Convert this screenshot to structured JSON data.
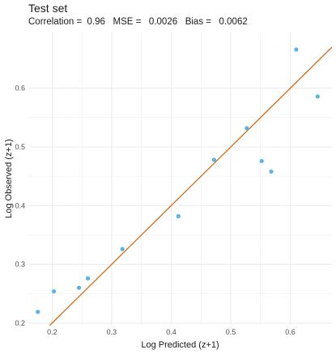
{
  "chart_data": {
    "type": "scatter",
    "title": "Test set",
    "subtitle": "Correlation =  0.96   MSE =   0.0026   Bias =   0.0062",
    "xlabel": "Log Predicted (z+1)",
    "ylabel": "Log Observed (z+1)",
    "xlim": [
      0.16,
      0.67
    ],
    "ylim": [
      0.197,
      0.695
    ],
    "xticks": [
      "0.2",
      "0.3",
      "0.4",
      "0.5",
      "0.6"
    ],
    "yticks": [
      "0.2",
      "0.3",
      "0.4",
      "0.5",
      "0.6"
    ],
    "grid": true,
    "points": [
      {
        "x": 0.176,
        "y": 0.219
      },
      {
        "x": 0.203,
        "y": 0.254
      },
      {
        "x": 0.245,
        "y": 0.26
      },
      {
        "x": 0.26,
        "y": 0.276
      },
      {
        "x": 0.318,
        "y": 0.326
      },
      {
        "x": 0.412,
        "y": 0.382
      },
      {
        "x": 0.472,
        "y": 0.478
      },
      {
        "x": 0.527,
        "y": 0.532
      },
      {
        "x": 0.552,
        "y": 0.476
      },
      {
        "x": 0.568,
        "y": 0.458
      },
      {
        "x": 0.61,
        "y": 0.666
      },
      {
        "x": 0.646,
        "y": 0.586
      }
    ],
    "line": {
      "type": "identity",
      "from": 0.196,
      "to": 0.67
    },
    "colors": {
      "points": "#56b4e9",
      "line": "#d55e00",
      "grid": "#ebebeb"
    }
  }
}
